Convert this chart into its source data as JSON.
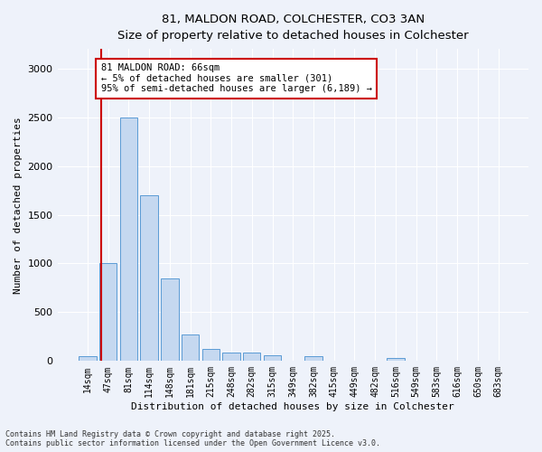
{
  "title_line1": "81, MALDON ROAD, COLCHESTER, CO3 3AN",
  "title_line2": "Size of property relative to detached houses in Colchester",
  "xlabel": "Distribution of detached houses by size in Colchester",
  "ylabel": "Number of detached properties",
  "categories": [
    "14sqm",
    "47sqm",
    "81sqm",
    "114sqm",
    "148sqm",
    "181sqm",
    "215sqm",
    "248sqm",
    "282sqm",
    "315sqm",
    "349sqm",
    "382sqm",
    "415sqm",
    "449sqm",
    "482sqm",
    "516sqm",
    "549sqm",
    "583sqm",
    "616sqm",
    "650sqm",
    "683sqm"
  ],
  "values": [
    50,
    1000,
    2500,
    1700,
    850,
    270,
    120,
    90,
    90,
    55,
    5,
    50,
    5,
    5,
    5,
    30,
    5,
    5,
    5,
    5,
    5
  ],
  "bar_color": "#c5d8f0",
  "bar_edge_color": "#5b9bd5",
  "red_line_bar_index": 1,
  "annotation_text": "81 MALDON ROAD: 66sqm\n← 5% of detached houses are smaller (301)\n95% of semi-detached houses are larger (6,189) →",
  "annotation_box_color": "#ffffff",
  "annotation_box_edge_color": "#cc0000",
  "red_line_color": "#cc0000",
  "background_color": "#eef2fa",
  "grid_color": "#ffffff",
  "footer_line1": "Contains HM Land Registry data © Crown copyright and database right 2025.",
  "footer_line2": "Contains public sector information licensed under the Open Government Licence v3.0.",
  "ylim": [
    0,
    3200
  ],
  "yticks": [
    0,
    500,
    1000,
    1500,
    2000,
    2500,
    3000
  ]
}
